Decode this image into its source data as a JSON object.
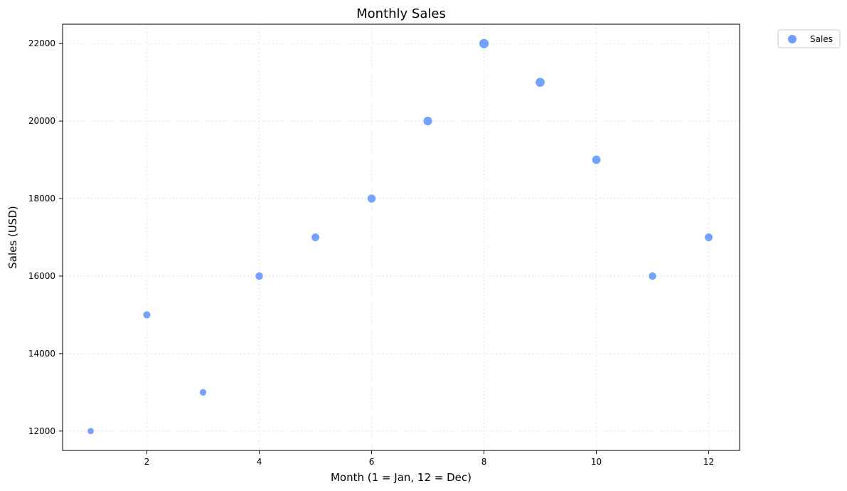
{
  "chart_data": {
    "type": "scatter",
    "title": "Monthly Sales",
    "xlabel": "Month (1 = Jan, 12 = Dec)",
    "ylabel": "Sales (USD)",
    "xlim": [
      0.5,
      12.55
    ],
    "ylim": [
      11500,
      22500
    ],
    "xticks": [
      2,
      4,
      6,
      8,
      10,
      12
    ],
    "yticks": [
      12000,
      14000,
      16000,
      18000,
      20000,
      22000
    ],
    "grid": true,
    "legend_position": "outside-top-right",
    "series": [
      {
        "name": "Sales",
        "color": "#6d9eff",
        "marker_size_scales_with_value": true,
        "x": [
          1,
          2,
          3,
          4,
          5,
          6,
          7,
          8,
          9,
          10,
          11,
          12
        ],
        "y": [
          12000,
          15000,
          13000,
          16000,
          17000,
          18000,
          20000,
          22000,
          21000,
          19000,
          16000,
          17000
        ]
      }
    ]
  }
}
